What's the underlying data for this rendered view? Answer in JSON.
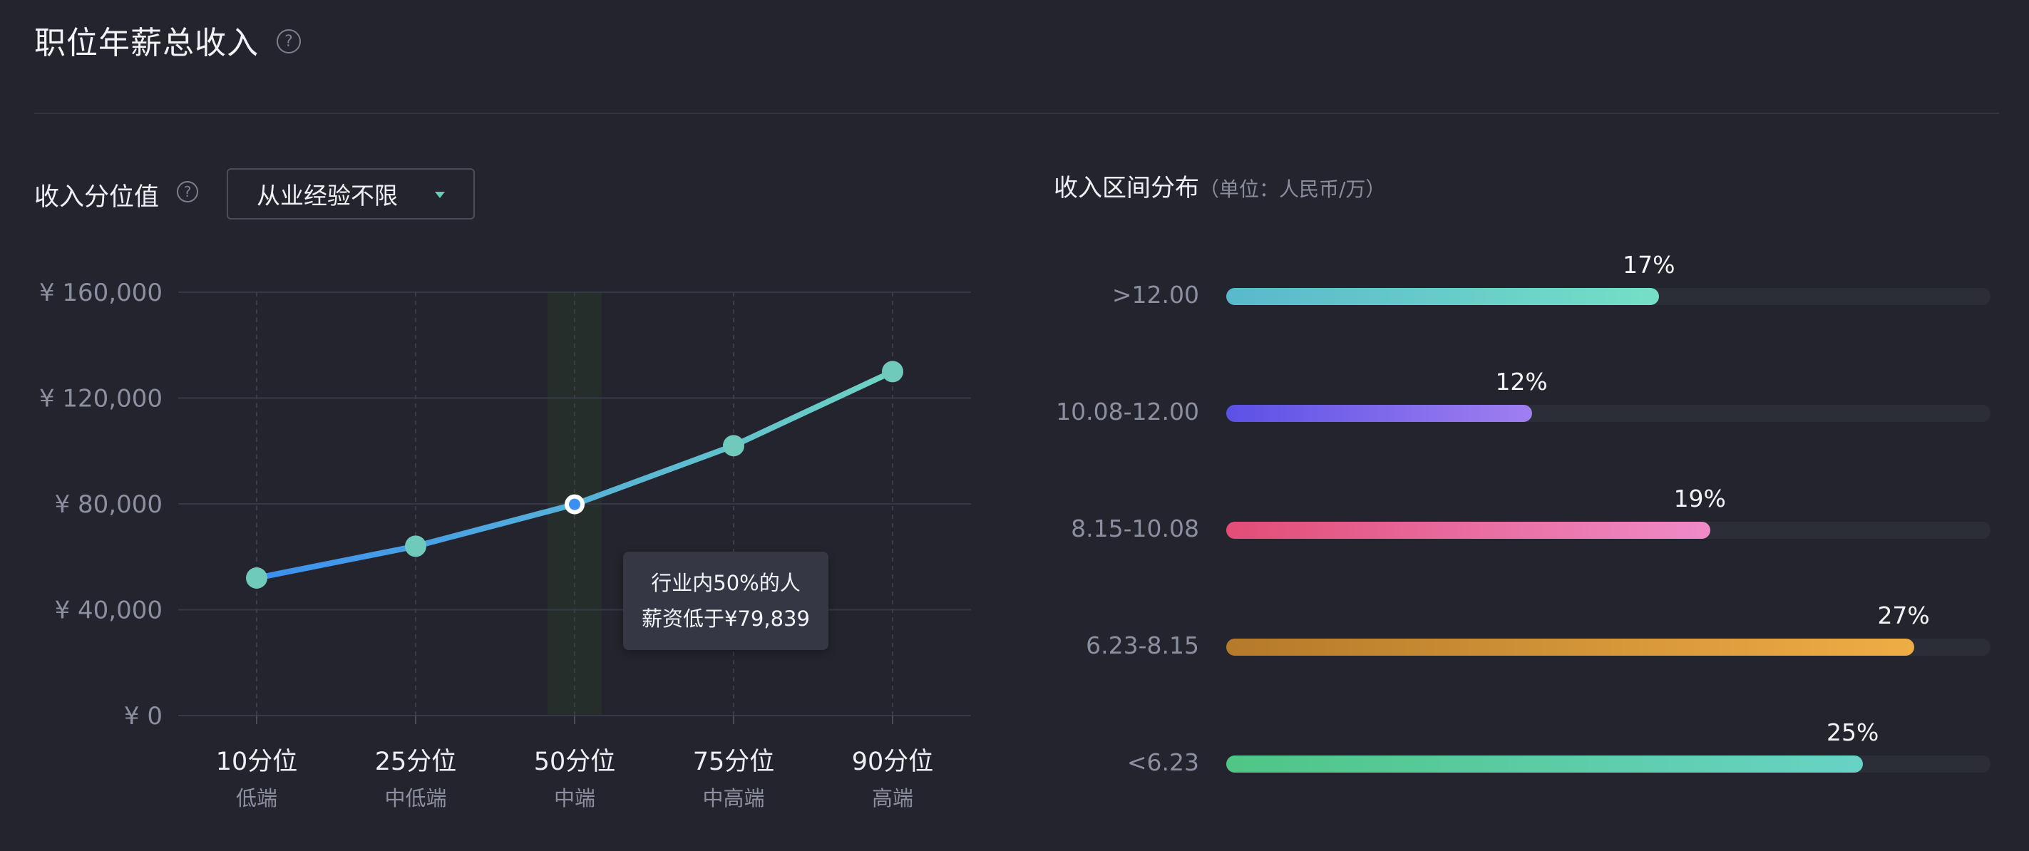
{
  "header": {
    "title": "职位年薪总收入",
    "help_glyph": "?"
  },
  "percentile_panel": {
    "label": "收入分位值",
    "help_glyph": "?",
    "dropdown_value": "从业经验不限",
    "tooltip_line1": "行业内50%的人",
    "tooltip_line2": "薪资低于¥79,839"
  },
  "distribution_panel": {
    "title": "收入区间分布",
    "unit": "（单位：人民币/万）"
  },
  "chart_data": [
    {
      "type": "line",
      "categories": [
        "10分位",
        "25分位",
        "50分位",
        "75分位",
        "90分位"
      ],
      "sublabels": [
        "低端",
        "中低端",
        "中端",
        "中高端",
        "高端"
      ],
      "values": [
        52000,
        64000,
        79839,
        102000,
        130000
      ],
      "yticks": [
        "¥ 0",
        "¥ 40,000",
        "¥ 80,000",
        "¥ 120,000",
        "¥ 160,000"
      ],
      "ylim": [
        0,
        160000
      ],
      "highlight_index": 2,
      "grid": true,
      "colors": {
        "line_start": "#3b8ff0",
        "line_end": "#6fd3c2",
        "point": "#6fcabb",
        "highlight_band": "#262e2c"
      }
    },
    {
      "type": "bar",
      "orientation": "horizontal",
      "categories": [
        ">12.00",
        "10.08-12.00",
        "8.15-10.08",
        "6.23-8.15",
        "<6.23"
      ],
      "values": [
        17,
        12,
        19,
        27,
        25
      ],
      "labels": [
        "17%",
        "12%",
        "19%",
        "27%",
        "25%"
      ],
      "xlim": [
        0,
        30
      ],
      "colors": [
        [
          "#58b9cc",
          "#75dfc6"
        ],
        [
          "#5b51e6",
          "#a07ff0"
        ],
        [
          "#e24d76",
          "#ef8bc8"
        ],
        [
          "#b57a2a",
          "#efad45"
        ],
        [
          "#4fc585",
          "#68d3c5"
        ]
      ]
    }
  ]
}
